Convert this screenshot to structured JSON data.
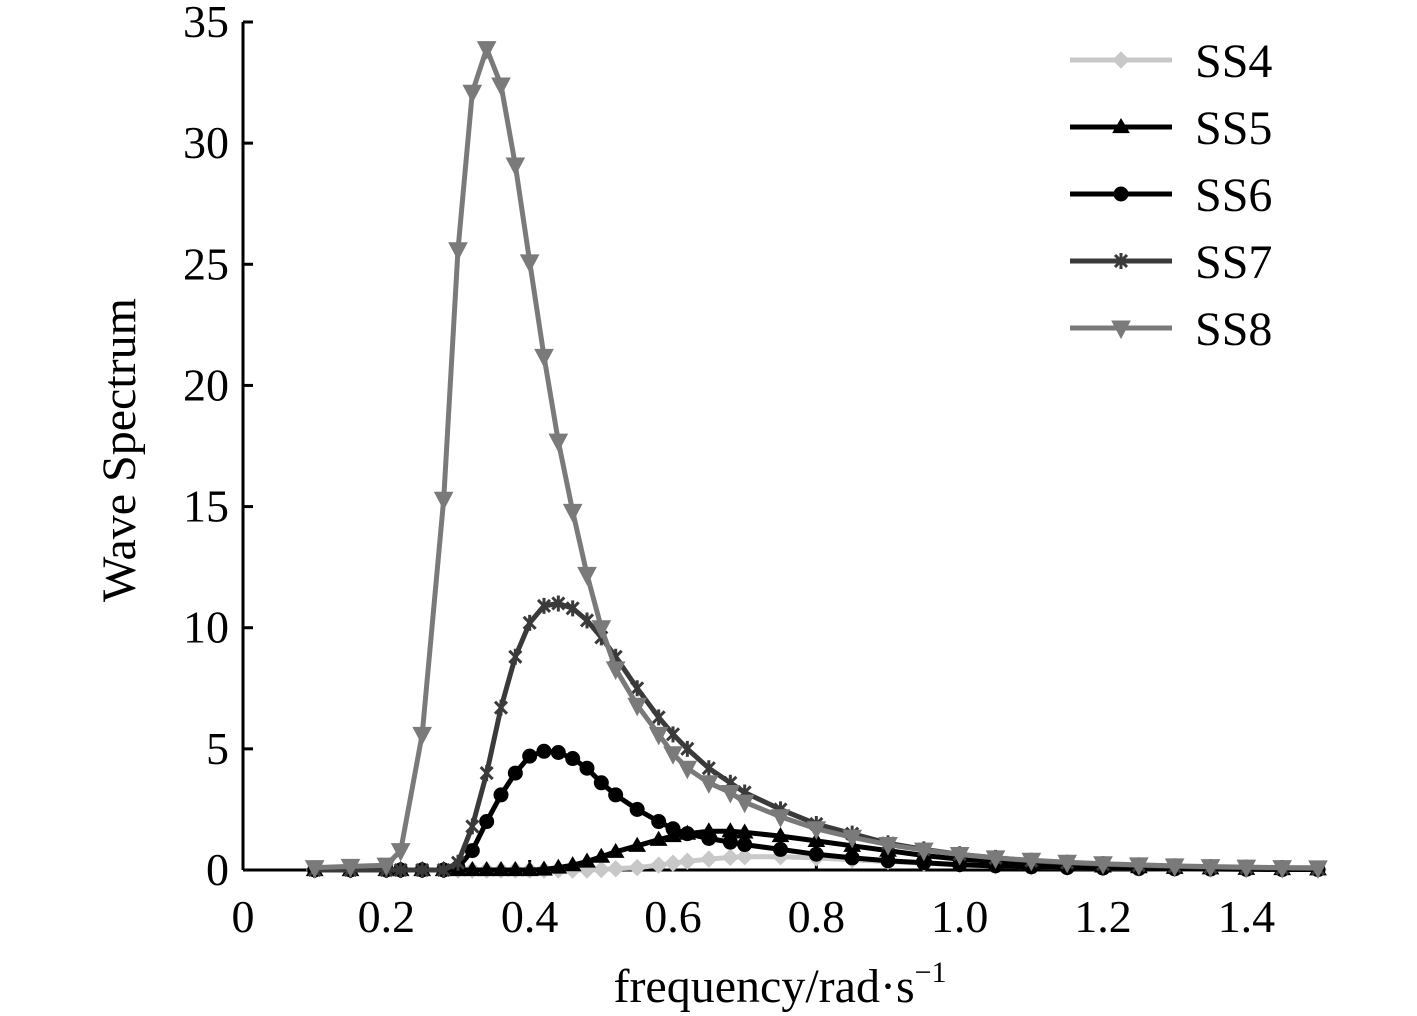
{
  "chart_data": {
    "type": "line",
    "xlabel": "frequency/rad·s",
    "xlabel_sup": "−1",
    "ylabel": "Wave Spectrum",
    "xlim": [
      0,
      1.5
    ],
    "ylim": [
      0,
      35
    ],
    "x_ticks": [
      "0",
      "0.2",
      "0.4",
      "0.6",
      "0.8",
      "1.0",
      "1.2",
      "1.4"
    ],
    "y_ticks": [
      "0",
      "5",
      "10",
      "15",
      "20",
      "25",
      "30",
      "35"
    ],
    "grid": false,
    "legend_position": "top-right",
    "x": [
      0.1,
      0.15,
      0.2,
      0.22,
      0.25,
      0.28,
      0.3,
      0.32,
      0.34,
      0.36,
      0.38,
      0.4,
      0.42,
      0.44,
      0.46,
      0.48,
      0.5,
      0.52,
      0.55,
      0.58,
      0.6,
      0.62,
      0.65,
      0.68,
      0.7,
      0.75,
      0.8,
      0.85,
      0.9,
      0.95,
      1.0,
      1.05,
      1.1,
      1.15,
      1.2,
      1.25,
      1.3,
      1.35,
      1.4,
      1.45,
      1.5
    ],
    "series": [
      {
        "name": "SS4",
        "color": "#c8c8c8",
        "marker": "diamond",
        "values": [
          0,
          0,
          0,
          0,
          0,
          0,
          0,
          0,
          0,
          0,
          0,
          0,
          0,
          0,
          0,
          0,
          0.02,
          0.05,
          0.1,
          0.2,
          0.28,
          0.36,
          0.45,
          0.52,
          0.55,
          0.55,
          0.5,
          0.42,
          0.35,
          0.28,
          0.22,
          0.17,
          0.13,
          0.1,
          0.08,
          0.06,
          0.05,
          0.04,
          0.03,
          0.02,
          0.02
        ]
      },
      {
        "name": "SS5",
        "color": "#000000",
        "marker": "triangle",
        "values": [
          0,
          0,
          0,
          0,
          0,
          0,
          0,
          0,
          0,
          0,
          0,
          0,
          0.02,
          0.1,
          0.2,
          0.35,
          0.55,
          0.75,
          1.0,
          1.25,
          1.4,
          1.5,
          1.6,
          1.6,
          1.55,
          1.4,
          1.2,
          1.0,
          0.8,
          0.6,
          0.45,
          0.35,
          0.25,
          0.2,
          0.15,
          0.12,
          0.09,
          0.07,
          0.05,
          0.04,
          0.03
        ]
      },
      {
        "name": "SS6",
        "color": "#000000",
        "marker": "circle",
        "values": [
          0,
          0,
          0,
          0,
          0,
          0,
          0.1,
          0.8,
          2.0,
          3.1,
          4.0,
          4.7,
          4.9,
          4.85,
          4.6,
          4.2,
          3.6,
          3.1,
          2.5,
          2.0,
          1.7,
          1.5,
          1.3,
          1.15,
          1.05,
          0.85,
          0.65,
          0.5,
          0.38,
          0.3,
          0.22,
          0.17,
          0.13,
          0.1,
          0.08,
          0.06,
          0.05,
          0.04,
          0.03,
          0.02,
          0.02
        ]
      },
      {
        "name": "SS7",
        "color": "#3a3a3a",
        "marker": "star",
        "values": [
          0,
          0,
          0,
          0,
          0,
          0,
          0.3,
          1.8,
          4.0,
          6.7,
          8.8,
          10.2,
          10.9,
          11.0,
          10.8,
          10.3,
          9.6,
          8.8,
          7.5,
          6.3,
          5.6,
          5.0,
          4.2,
          3.6,
          3.2,
          2.5,
          1.9,
          1.5,
          1.1,
          0.85,
          0.65,
          0.5,
          0.38,
          0.3,
          0.24,
          0.19,
          0.15,
          0.12,
          0.1,
          0.08,
          0.06
        ]
      },
      {
        "name": "SS8",
        "color": "#7a7a7a",
        "marker": "triangle-down",
        "values": [
          0.1,
          0.15,
          0.2,
          0.8,
          5.6,
          15.3,
          25.6,
          32.1,
          33.9,
          32.4,
          29.1,
          25.1,
          21.2,
          17.7,
          14.8,
          12.2,
          10.0,
          8.3,
          6.8,
          5.6,
          4.8,
          4.2,
          3.6,
          3.2,
          2.8,
          2.2,
          1.7,
          1.35,
          1.05,
          0.82,
          0.64,
          0.5,
          0.4,
          0.32,
          0.26,
          0.21,
          0.17,
          0.14,
          0.12,
          0.1,
          0.09
        ]
      }
    ]
  }
}
